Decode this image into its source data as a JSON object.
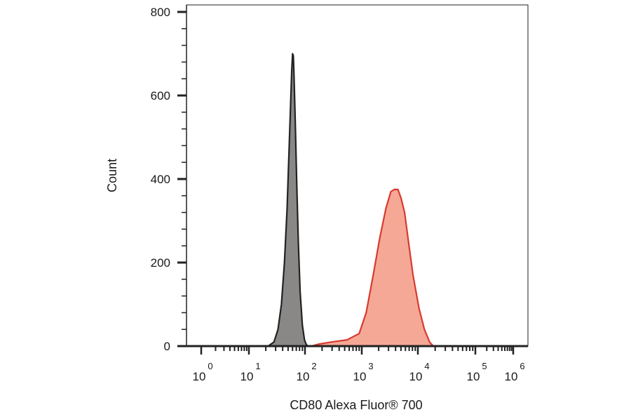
{
  "chart_data": {
    "type": "area",
    "title": "",
    "xlabel": "CD80 Alexa Fluor® 700",
    "ylabel": "Count",
    "x_scale": "log",
    "x_ticks": [
      {
        "base": "10",
        "exp": "0",
        "value": 1
      },
      {
        "base": "10",
        "exp": "1",
        "value": 10
      },
      {
        "base": "10",
        "exp": "2",
        "value": 100
      },
      {
        "base": "10",
        "exp": "3",
        "value": 1000
      },
      {
        "base": "10",
        "exp": "4",
        "value": 10000
      },
      {
        "base": "10",
        "exp": "5",
        "value": 100000
      },
      {
        "base": "10",
        "exp": "6",
        "value": 1000000
      }
    ],
    "y_ticks": [
      "0",
      "200",
      "400",
      "600",
      "800"
    ],
    "ylim": [
      0,
      800
    ],
    "grid": false,
    "series": [
      {
        "color": "#8a8787",
        "stroke": "#222222",
        "points": [
          [
            22,
            0
          ],
          [
            28,
            10
          ],
          [
            33,
            40
          ],
          [
            38,
            100
          ],
          [
            43,
            200
          ],
          [
            48,
            330
          ],
          [
            52,
            470
          ],
          [
            56,
            600
          ],
          [
            58,
            660
          ],
          [
            60,
            700
          ],
          [
            62,
            695
          ],
          [
            64,
            640
          ],
          [
            67,
            540
          ],
          [
            71,
            400
          ],
          [
            76,
            250
          ],
          [
            82,
            130
          ],
          [
            90,
            50
          ],
          [
            98,
            15
          ],
          [
            106,
            3
          ],
          [
            115,
            0
          ]
        ]
      },
      {
        "color": "#f6a896",
        "stroke": "#d83a2e",
        "points": [
          [
            130,
            0
          ],
          [
            180,
            5
          ],
          [
            300,
            10
          ],
          [
            550,
            15
          ],
          [
            900,
            30
          ],
          [
            1200,
            80
          ],
          [
            1600,
            170
          ],
          [
            2100,
            260
          ],
          [
            2700,
            330
          ],
          [
            3300,
            370
          ],
          [
            3800,
            375
          ],
          [
            4400,
            375
          ],
          [
            5000,
            355
          ],
          [
            5800,
            320
          ],
          [
            6800,
            250
          ],
          [
            8200,
            170
          ],
          [
            10500,
            90
          ],
          [
            13000,
            40
          ],
          [
            16000,
            10
          ],
          [
            18500,
            0
          ]
        ]
      }
    ]
  }
}
